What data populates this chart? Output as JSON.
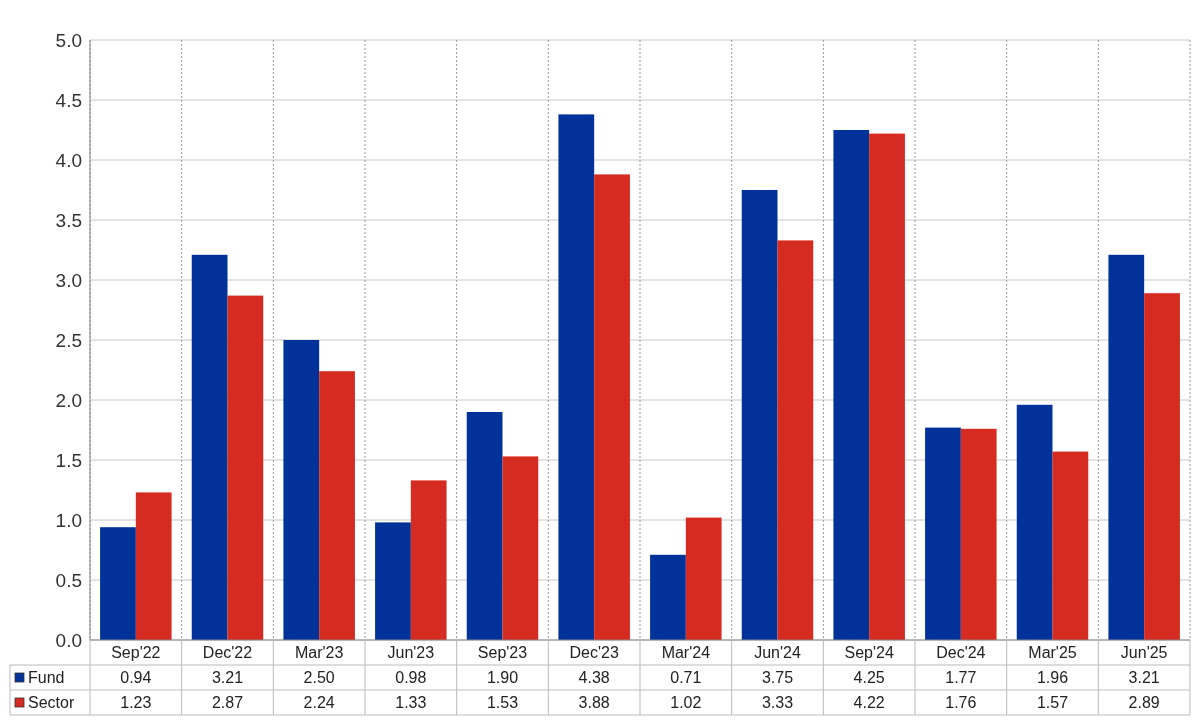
{
  "chart_data": {
    "type": "bar",
    "categories": [
      "Sep'22",
      "Dec'22",
      "Mar'23",
      "Jun'23",
      "Sep'23",
      "Dec'23",
      "Mar'24",
      "Jun'24",
      "Sep'24",
      "Dec'24",
      "Mar'25",
      "Jun'25"
    ],
    "series": [
      {
        "name": "Fund",
        "color": "#003299",
        "values": [
          0.94,
          3.21,
          2.5,
          0.98,
          1.9,
          4.38,
          0.71,
          3.75,
          4.25,
          1.77,
          1.96,
          3.21
        ],
        "value_labels": [
          "0.94",
          "3.21",
          "2.50",
          "0.98",
          "1.90",
          "4.38",
          "0.71",
          "3.75",
          "4.25",
          "1.77",
          "1.96",
          "3.21"
        ]
      },
      {
        "name": "Sector",
        "color": "#d62b20",
        "values": [
          1.23,
          2.87,
          2.24,
          1.33,
          1.53,
          3.88,
          1.02,
          3.33,
          4.22,
          1.76,
          1.57,
          2.89
        ],
        "value_labels": [
          "1.23",
          "2.87",
          "2.24",
          "1.33",
          "1.53",
          "3.88",
          "1.02",
          "3.33",
          "4.22",
          "1.76",
          "1.57",
          "2.89"
        ]
      }
    ],
    "ylim": [
      0,
      5
    ],
    "yticks": [
      {
        "value": 0,
        "label": "0.0"
      },
      {
        "value": 0.5,
        "label": "0.5"
      },
      {
        "value": 1,
        "label": "1.0"
      },
      {
        "value": 1.5,
        "label": "1.5"
      },
      {
        "value": 2,
        "label": "2.0"
      },
      {
        "value": 2.5,
        "label": "2.5"
      },
      {
        "value": 3,
        "label": "3.0"
      },
      {
        "value": 3.5,
        "label": "3.5"
      },
      {
        "value": 4,
        "label": "4.0"
      },
      {
        "value": 4.5,
        "label": "4.5"
      },
      {
        "value": 5,
        "label": "5.0"
      }
    ],
    "grid": true,
    "legend": "bottom left"
  }
}
